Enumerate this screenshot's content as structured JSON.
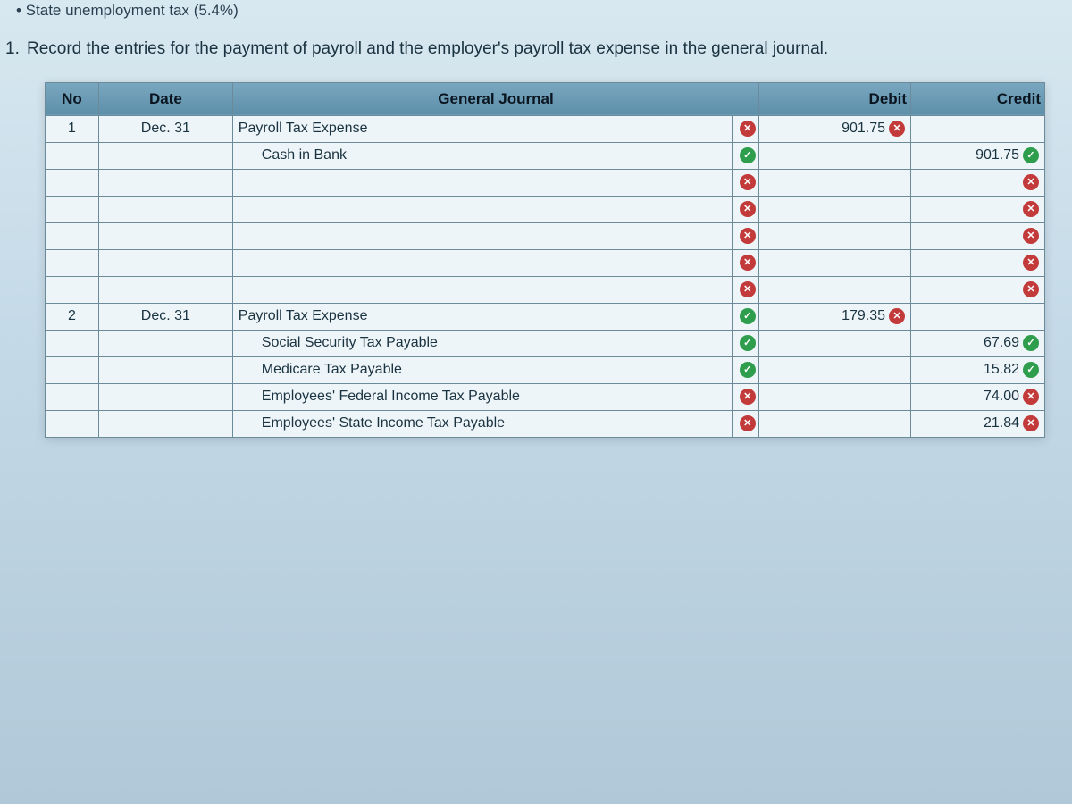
{
  "top_bullet": "• State unemployment tax (5.4%)",
  "instruction_num": "1.",
  "instruction_text": "Record the entries for the payment of payroll and the employer's payroll tax expense in the general journal.",
  "columns": {
    "no": "No",
    "date": "Date",
    "gj": "General Journal",
    "debit": "Debit",
    "credit": "Credit"
  },
  "colors": {
    "header_bg_top": "#7aa7c0",
    "header_bg_bottom": "#5d8fa8",
    "row_bg": "#eef5f9",
    "border": "#6b8a9a",
    "ok": "#2e9e4d",
    "bad": "#c33a3a",
    "page_bg_top": "#d8e8f0",
    "page_bg_bottom": "#b0c8d8"
  },
  "rows": [
    {
      "no": "1",
      "date": "Dec. 31",
      "account": "Payroll Tax Expense",
      "indent": 0,
      "gj_mark": "bad",
      "debit": "901.75",
      "debit_mark": "bad",
      "credit": "",
      "credit_mark": ""
    },
    {
      "no": "",
      "date": "",
      "account": "Cash in Bank",
      "indent": 1,
      "gj_mark": "ok",
      "debit": "",
      "debit_mark": "",
      "credit": "901.75",
      "credit_mark": "ok"
    },
    {
      "no": "",
      "date": "",
      "account": "",
      "indent": 0,
      "gj_mark": "bad",
      "debit": "",
      "debit_mark": "",
      "credit": "",
      "credit_mark": "bad"
    },
    {
      "no": "",
      "date": "",
      "account": "",
      "indent": 0,
      "gj_mark": "bad",
      "debit": "",
      "debit_mark": "",
      "credit": "",
      "credit_mark": "bad"
    },
    {
      "no": "",
      "date": "",
      "account": "",
      "indent": 0,
      "gj_mark": "bad",
      "debit": "",
      "debit_mark": "",
      "credit": "",
      "credit_mark": "bad"
    },
    {
      "no": "",
      "date": "",
      "account": "",
      "indent": 0,
      "gj_mark": "bad",
      "debit": "",
      "debit_mark": "",
      "credit": "",
      "credit_mark": "bad"
    },
    {
      "no": "",
      "date": "",
      "account": "",
      "indent": 0,
      "gj_mark": "bad",
      "debit": "",
      "debit_mark": "",
      "credit": "",
      "credit_mark": "bad"
    },
    {
      "no": "2",
      "date": "Dec. 31",
      "account": "Payroll Tax Expense",
      "indent": 0,
      "gj_mark": "ok",
      "debit": "179.35",
      "debit_mark": "bad",
      "credit": "",
      "credit_mark": ""
    },
    {
      "no": "",
      "date": "",
      "account": "Social Security Tax Payable",
      "indent": 1,
      "gj_mark": "ok",
      "debit": "",
      "debit_mark": "",
      "credit": "67.69",
      "credit_mark": "ok"
    },
    {
      "no": "",
      "date": "",
      "account": "Medicare Tax Payable",
      "indent": 1,
      "gj_mark": "ok",
      "debit": "",
      "debit_mark": "",
      "credit": "15.82",
      "credit_mark": "ok"
    },
    {
      "no": "",
      "date": "",
      "account": "Employees' Federal Income Tax Payable",
      "indent": 1,
      "gj_mark": "bad",
      "debit": "",
      "debit_mark": "",
      "credit": "74.00",
      "credit_mark": "bad"
    },
    {
      "no": "",
      "date": "",
      "account": "Employees' State Income Tax Payable",
      "indent": 1,
      "gj_mark": "bad",
      "debit": "",
      "debit_mark": "",
      "credit": "21.84",
      "credit_mark": "bad"
    }
  ]
}
